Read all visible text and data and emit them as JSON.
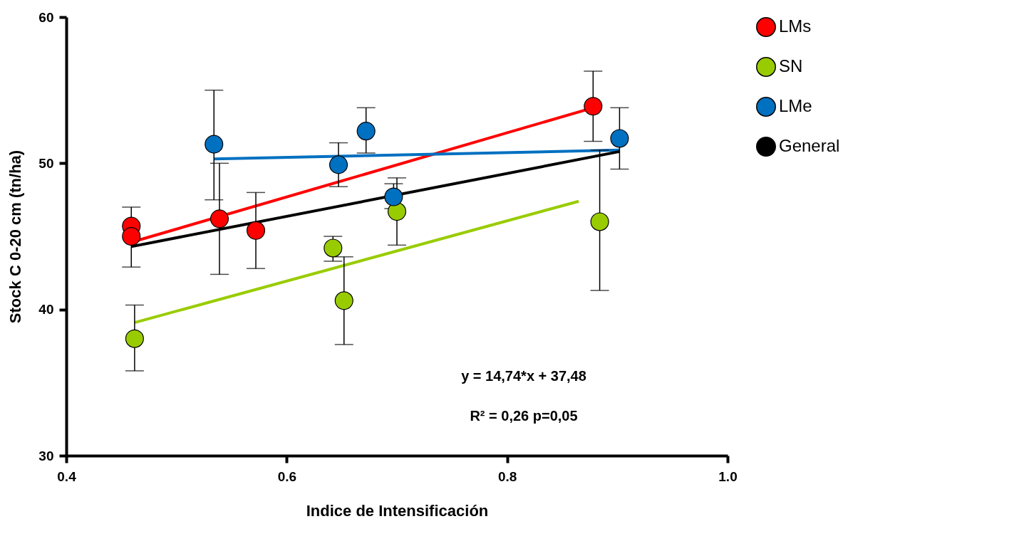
{
  "chart_data": {
    "type": "scatter",
    "xlabel": "Indice de Intensificación",
    "ylabel": "Stock C 0-20 cm   (tn/ha)",
    "xlim": [
      0.4,
      1.0
    ],
    "xticks": [
      0.4,
      0.6,
      0.8,
      {
        "value": 1.0,
        "label": "1.0"
      }
    ],
    "ylim": [
      30,
      60
    ],
    "yticks": [
      30,
      40,
      50,
      60
    ],
    "grid": false,
    "legend": "top right",
    "marker": "circle",
    "line_style": "solid",
    "series": [
      {
        "name": "LMs",
        "color": "#ff0000",
        "x": [
          0.459,
          0.459,
          0.539,
          0.572,
          0.878
        ],
        "values": [
          45.7,
          45.0,
          46.2,
          45.4,
          53.9
        ],
        "errors": [
          null,
          [
            42.9,
            47.0
          ],
          [
            42.4,
            50.0
          ],
          [
            42.8,
            48.0
          ],
          [
            51.5,
            56.3
          ]
        ]
      },
      {
        "name": "SN",
        "color": "#99cc00",
        "x": [
          0.462,
          0.642,
          0.652,
          0.7,
          0.884
        ],
        "values": [
          38.0,
          44.2,
          40.6,
          46.7,
          46.0
        ],
        "errors": [
          [
            35.8,
            40.3
          ],
          [
            43.3,
            45.0
          ],
          [
            37.6,
            43.6
          ],
          [
            44.4,
            49.0
          ],
          [
            41.3,
            50.9
          ]
        ]
      },
      {
        "name": "LMe",
        "color": "#0070c0",
        "x": [
          0.534,
          0.647,
          0.672,
          0.697,
          0.902
        ],
        "values": [
          51.3,
          49.9,
          52.2,
          47.7,
          51.7
        ],
        "errors": [
          [
            47.5,
            55.0
          ],
          [
            48.4,
            51.4
          ],
          [
            50.7,
            53.8
          ],
          [
            46.9,
            48.6
          ],
          [
            49.6,
            53.8
          ]
        ]
      },
      {
        "type": "line",
        "marker": "none",
        "color": "#ff0000",
        "x": [
          0.459,
          0.878
        ],
        "values": [
          44.6,
          53.8
        ]
      },
      {
        "type": "line",
        "marker": "none",
        "color": "#99cc00",
        "x": [
          0.462,
          0.865
        ],
        "values": [
          39.1,
          47.4
        ]
      },
      {
        "type": "line",
        "marker": "none",
        "color": "#0070c0",
        "x": [
          0.534,
          0.902
        ],
        "values": [
          50.3,
          50.9
        ]
      },
      {
        "name": "General",
        "type": "line",
        "marker": "none",
        "color": "#000000",
        "x": [
          0.459,
          0.902
        ],
        "values": [
          44.3,
          50.8
        ]
      }
    ],
    "annotations": [
      "y = 14,74*x + 37,48",
      "R² = 0,26 p=0,05"
    ]
  }
}
